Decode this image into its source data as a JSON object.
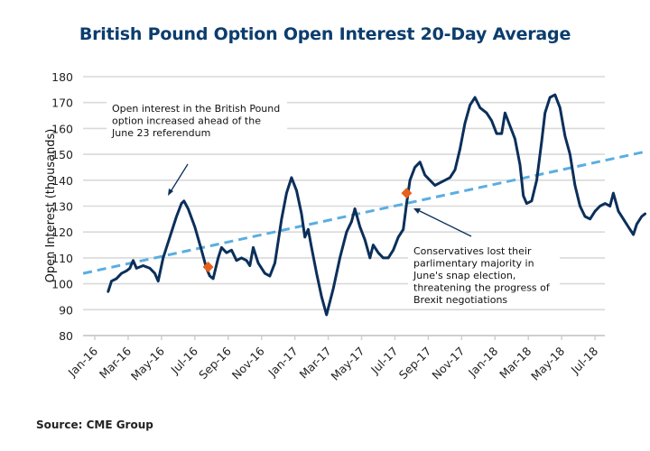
{
  "chart_data": {
    "type": "line",
    "title": "British Pound Option Open Interest 20-Day Average",
    "xlabel": "",
    "ylabel": "Open Interest (thousands)",
    "ylim": [
      80,
      180
    ],
    "yticks": [
      80,
      90,
      100,
      110,
      120,
      130,
      140,
      150,
      160,
      170,
      180
    ],
    "grid": true,
    "xticks": [
      "Jan-16",
      "Mar-16",
      "May-16",
      "Jul-16",
      "Sep-16",
      "Nov-16",
      "Jan-17",
      "Mar-17",
      "May-17",
      "Jul-17",
      "Sep-17",
      "Nov-17",
      "Jan-18",
      "Mar-18",
      "May-18",
      "Jul-18"
    ],
    "x_unit": "months since Jan-16",
    "series": [
      {
        "name": "Open Interest 20-Day Average",
        "color": "#0b2f5a",
        "style": "solid",
        "points": [
          [
            0.8,
            97
          ],
          [
            1.0,
            101
          ],
          [
            1.3,
            102
          ],
          [
            1.6,
            104
          ],
          [
            1.9,
            105
          ],
          [
            2.1,
            106
          ],
          [
            2.3,
            109
          ],
          [
            2.5,
            106
          ],
          [
            2.9,
            107
          ],
          [
            3.3,
            106
          ],
          [
            3.6,
            104
          ],
          [
            3.8,
            101
          ],
          [
            4.1,
            110
          ],
          [
            4.5,
            118
          ],
          [
            4.9,
            126
          ],
          [
            5.2,
            131
          ],
          [
            5.35,
            132
          ],
          [
            5.6,
            129
          ],
          [
            6.0,
            122
          ],
          [
            6.4,
            113
          ],
          [
            6.7,
            106
          ],
          [
            6.9,
            103
          ],
          [
            7.1,
            102
          ],
          [
            7.4,
            110
          ],
          [
            7.6,
            114
          ],
          [
            7.9,
            112
          ],
          [
            8.2,
            113
          ],
          [
            8.5,
            109
          ],
          [
            8.8,
            110
          ],
          [
            9.1,
            109
          ],
          [
            9.3,
            107
          ],
          [
            9.5,
            114
          ],
          [
            9.8,
            108
          ],
          [
            10.2,
            104
          ],
          [
            10.5,
            103
          ],
          [
            10.8,
            108
          ],
          [
            11.2,
            125
          ],
          [
            11.5,
            135
          ],
          [
            11.8,
            141
          ],
          [
            12.1,
            136
          ],
          [
            12.4,
            127
          ],
          [
            12.6,
            118
          ],
          [
            12.8,
            121
          ],
          [
            13.0,
            114
          ],
          [
            13.3,
            104
          ],
          [
            13.6,
            95
          ],
          [
            13.9,
            88
          ],
          [
            14.3,
            98
          ],
          [
            14.7,
            110
          ],
          [
            15.1,
            120
          ],
          [
            15.4,
            124
          ],
          [
            15.6,
            129
          ],
          [
            15.9,
            122
          ],
          [
            16.2,
            117
          ],
          [
            16.5,
            110
          ],
          [
            16.7,
            115
          ],
          [
            17.0,
            112
          ],
          [
            17.3,
            110
          ],
          [
            17.6,
            110
          ],
          [
            17.9,
            113
          ],
          [
            18.2,
            118
          ],
          [
            18.5,
            121
          ],
          [
            18.7,
            131
          ],
          [
            18.9,
            140
          ],
          [
            19.2,
            145
          ],
          [
            19.5,
            147
          ],
          [
            19.8,
            142
          ],
          [
            20.1,
            140
          ],
          [
            20.4,
            138
          ],
          [
            20.7,
            139
          ],
          [
            21.0,
            140
          ],
          [
            21.3,
            141
          ],
          [
            21.6,
            144
          ],
          [
            21.9,
            152
          ],
          [
            22.2,
            162
          ],
          [
            22.5,
            169
          ],
          [
            22.8,
            172
          ],
          [
            23.1,
            168
          ],
          [
            23.5,
            166
          ],
          [
            23.8,
            163
          ],
          [
            24.1,
            158
          ],
          [
            24.4,
            158
          ],
          [
            24.6,
            166
          ],
          [
            24.9,
            161
          ],
          [
            25.2,
            156
          ],
          [
            25.5,
            146
          ],
          [
            25.7,
            134
          ],
          [
            25.9,
            131
          ],
          [
            26.2,
            132
          ],
          [
            26.5,
            140
          ],
          [
            26.8,
            155
          ],
          [
            27.0,
            166
          ],
          [
            27.3,
            172
          ],
          [
            27.6,
            173
          ],
          [
            27.9,
            168
          ],
          [
            28.2,
            157
          ],
          [
            28.5,
            150
          ],
          [
            28.8,
            138
          ],
          [
            29.1,
            130
          ],
          [
            29.4,
            126
          ],
          [
            29.7,
            125
          ],
          [
            30.0,
            128
          ],
          [
            30.3,
            130
          ],
          [
            30.6,
            131
          ],
          [
            30.9,
            130
          ],
          [
            31.1,
            135
          ],
          [
            31.4,
            128
          ],
          [
            31.7,
            125
          ],
          [
            32.0,
            122
          ],
          [
            32.3,
            119
          ],
          [
            32.5,
            123
          ],
          [
            32.8,
            126
          ],
          [
            33.0,
            127
          ]
        ]
      },
      {
        "name": "Trend",
        "color": "#5aaee0",
        "style": "dashed",
        "points": [
          [
            -0.7,
            104
          ],
          [
            33.0,
            151
          ]
        ]
      }
    ],
    "markers": [
      {
        "x": 6.8,
        "y": 106.5,
        "color": "#e8601c",
        "shape": "diamond"
      },
      {
        "x": 18.7,
        "y": 135,
        "color": "#e8601c",
        "shape": "diamond"
      }
    ],
    "annotations": [
      {
        "lines": [
          "Open interest in the British Pound",
          "option increased ahead of the",
          "June 23 referendum"
        ]
      },
      {
        "lines": [
          "Conservatives lost their",
          "parlimentary majority in",
          "June's snap election,",
          "threatening the progress of",
          "Brexit negotiations"
        ]
      }
    ],
    "source": "Source: CME Group"
  }
}
